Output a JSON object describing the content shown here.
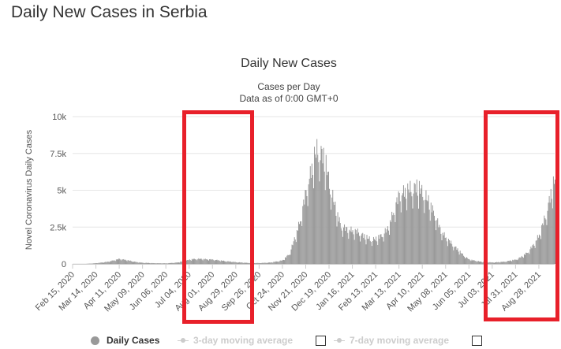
{
  "page": {
    "title": "Daily New Cases in Serbia"
  },
  "chart_data": {
    "type": "bar",
    "title": "Daily New Cases",
    "subtitle_lines": [
      "Cases per Day",
      "Data as of 0:00 GMT+0"
    ],
    "ylabel": "Novel Coronavirus Daily Cases",
    "xlabel": "",
    "ylim": [
      0,
      10000
    ],
    "y_ticks": [
      0,
      2500,
      5000,
      7500,
      10000
    ],
    "y_tick_labels": [
      "0",
      "2.5k",
      "5k",
      "7.5k",
      "10k"
    ],
    "x_range": [
      "2020-02-15",
      "2021-09-16"
    ],
    "x_tick_labels": [
      "Feb 15, 2020",
      "Mar 14, 2020",
      "Apr 11, 2020",
      "May 09, 2020",
      "Jun 06, 2020",
      "Jul 04, 2020",
      "Aug 01, 2020",
      "Aug 29, 2020",
      "Sep 26, 2020",
      "Oct 24, 2020",
      "Nov 21, 2020",
      "Dec 19, 2020",
      "Jan 16, 2021",
      "Feb 13, 2021",
      "Mar 13, 2021",
      "Apr 10, 2021",
      "May 08, 2021",
      "Jun 05, 2021",
      "Jul 03, 2021",
      "Jul 31, 2021",
      "Aug 28, 2021"
    ],
    "grid": true,
    "legend_position": "bottom",
    "bar_color": "#999999",
    "series": [
      {
        "name": "Daily Cases",
        "x": [
          "2020-02-15",
          "2020-03-01",
          "2020-03-14",
          "2020-03-28",
          "2020-04-04",
          "2020-04-11",
          "2020-04-18",
          "2020-04-25",
          "2020-05-02",
          "2020-05-09",
          "2020-05-23",
          "2020-06-06",
          "2020-06-20",
          "2020-07-01",
          "2020-07-08",
          "2020-07-15",
          "2020-07-22",
          "2020-08-01",
          "2020-08-15",
          "2020-08-29",
          "2020-09-12",
          "2020-09-26",
          "2020-10-10",
          "2020-10-24",
          "2020-11-01",
          "2020-11-07",
          "2020-11-14",
          "2020-11-21",
          "2020-11-28",
          "2020-12-01",
          "2020-12-05",
          "2020-12-10",
          "2020-12-15",
          "2020-12-19",
          "2020-12-26",
          "2021-01-02",
          "2021-01-09",
          "2021-01-16",
          "2021-01-23",
          "2021-01-30",
          "2021-02-06",
          "2021-02-13",
          "2021-02-20",
          "2021-02-27",
          "2021-03-06",
          "2021-03-13",
          "2021-03-20",
          "2021-03-27",
          "2021-04-03",
          "2021-04-10",
          "2021-04-17",
          "2021-04-24",
          "2021-05-01",
          "2021-05-08",
          "2021-05-15",
          "2021-05-22",
          "2021-05-29",
          "2021-06-05",
          "2021-06-19",
          "2021-07-03",
          "2021-07-17",
          "2021-07-31",
          "2021-08-07",
          "2021-08-14",
          "2021-08-21",
          "2021-08-28",
          "2021-09-04",
          "2021-09-11",
          "2021-09-16"
        ],
        "values": [
          0,
          0,
          50,
          150,
          250,
          350,
          280,
          200,
          120,
          80,
          50,
          40,
          100,
          250,
          330,
          350,
          330,
          300,
          200,
          120,
          70,
          60,
          100,
          250,
          700,
          1700,
          3000,
          5000,
          6600,
          7400,
          7900,
          7600,
          6800,
          5600,
          3900,
          2600,
          2400,
          2300,
          2200,
          1900,
          1700,
          1700,
          2000,
          2400,
          3600,
          4800,
          5000,
          5200,
          5300,
          5000,
          4300,
          3500,
          2400,
          1800,
          1400,
          1000,
          600,
          300,
          150,
          100,
          150,
          300,
          500,
          800,
          1300,
          2000,
          3200,
          4800,
          5900
        ]
      }
    ],
    "legend": [
      {
        "label": "Daily Cases",
        "active": true
      },
      {
        "label": "3-day moving average",
        "active": false
      },
      {
        "label": "7-day moving average",
        "active": false
      }
    ]
  }
}
